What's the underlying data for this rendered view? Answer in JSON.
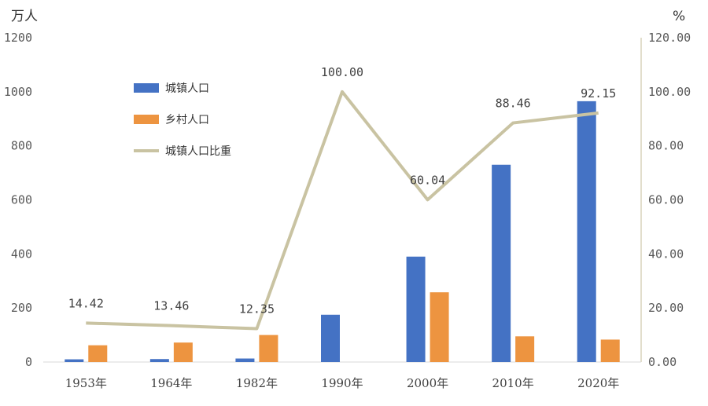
{
  "chart_data": {
    "type": "bar",
    "left_axis_unit": "万人",
    "right_axis_unit": "%",
    "categories": [
      "1953年",
      "1964年",
      "1982年",
      "1990年",
      "2000年",
      "2010年",
      "2020年"
    ],
    "series": [
      {
        "name": "城镇人口",
        "kind": "bar",
        "axis": "left",
        "color": "#4472C4",
        "values": [
          10,
          11,
          13,
          175,
          390,
          730,
          965
        ]
      },
      {
        "name": "乡村人口",
        "kind": "bar",
        "axis": "left",
        "color": "#ED9440",
        "values": [
          62,
          72,
          100,
          0,
          258,
          95,
          83
        ]
      },
      {
        "name": "城镇人口比重",
        "kind": "line",
        "axis": "right",
        "color": "#C9C3A2",
        "values": [
          14.42,
          13.46,
          12.35,
          100.0,
          60.04,
          88.46,
          92.15
        ],
        "labels": [
          "14.42",
          "13.46",
          "12.35",
          "100.00",
          "60.04",
          "88.46",
          "92.15"
        ]
      }
    ],
    "left_axis": {
      "min": 0,
      "max": 1200,
      "ticks": [
        "0",
        "200",
        "400",
        "600",
        "800",
        "1000",
        "1200"
      ]
    },
    "right_axis": {
      "min": 0,
      "max": 120,
      "ticks": [
        "0.00",
        "20.00",
        "40.00",
        "60.00",
        "80.00",
        "100.00",
        "120.00"
      ]
    },
    "legend_position": "top-left",
    "grid": false
  }
}
